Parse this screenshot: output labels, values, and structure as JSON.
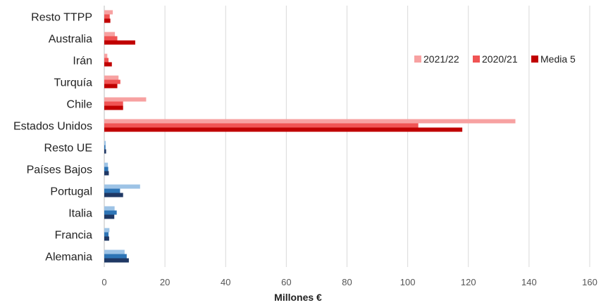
{
  "chart_data": {
    "type": "bar",
    "orientation": "horizontal",
    "categories": [
      "Resto TTPP",
      "Australia",
      "Irán",
      "Turquía",
      "Chile",
      "Estados Unidos",
      "Resto UE",
      "Países Bajos",
      "Portugal",
      "Italia",
      "Francia",
      "Alemania"
    ],
    "series": [
      {
        "name": "2021/22",
        "values": [
          2.8,
          3.5,
          1.0,
          4.7,
          13.8,
          135.5,
          0.5,
          1.2,
          11.8,
          3.4,
          1.7,
          6.7
        ]
      },
      {
        "name": "2020/21",
        "values": [
          1.8,
          4.3,
          1.4,
          5.3,
          6.2,
          103.5,
          0.4,
          1.3,
          5.2,
          4.1,
          1.4,
          7.4
        ]
      },
      {
        "name": "Media 5",
        "values": [
          2.0,
          10.2,
          2.5,
          4.3,
          6.2,
          118.0,
          0.6,
          1.5,
          6.2,
          3.3,
          1.6,
          8.1
        ]
      }
    ],
    "colors": {
      "red_group": [
        "#f7a1a1",
        "#f05454",
        "#c00000"
      ],
      "blue_group": [
        "#9dc3e6",
        "#2e75b6",
        "#1f3864"
      ]
    },
    "xlim": [
      0,
      160
    ],
    "x_ticks": [
      "0",
      "20",
      "40",
      "60",
      "80",
      "100",
      "120",
      "140",
      "160"
    ],
    "xlabel": "Millones €",
    "ylabel": "",
    "title": "",
    "grid": true,
    "legend": {
      "position": "right",
      "entries": [
        "2021/22",
        "2020/21",
        "Media 5"
      ]
    }
  }
}
